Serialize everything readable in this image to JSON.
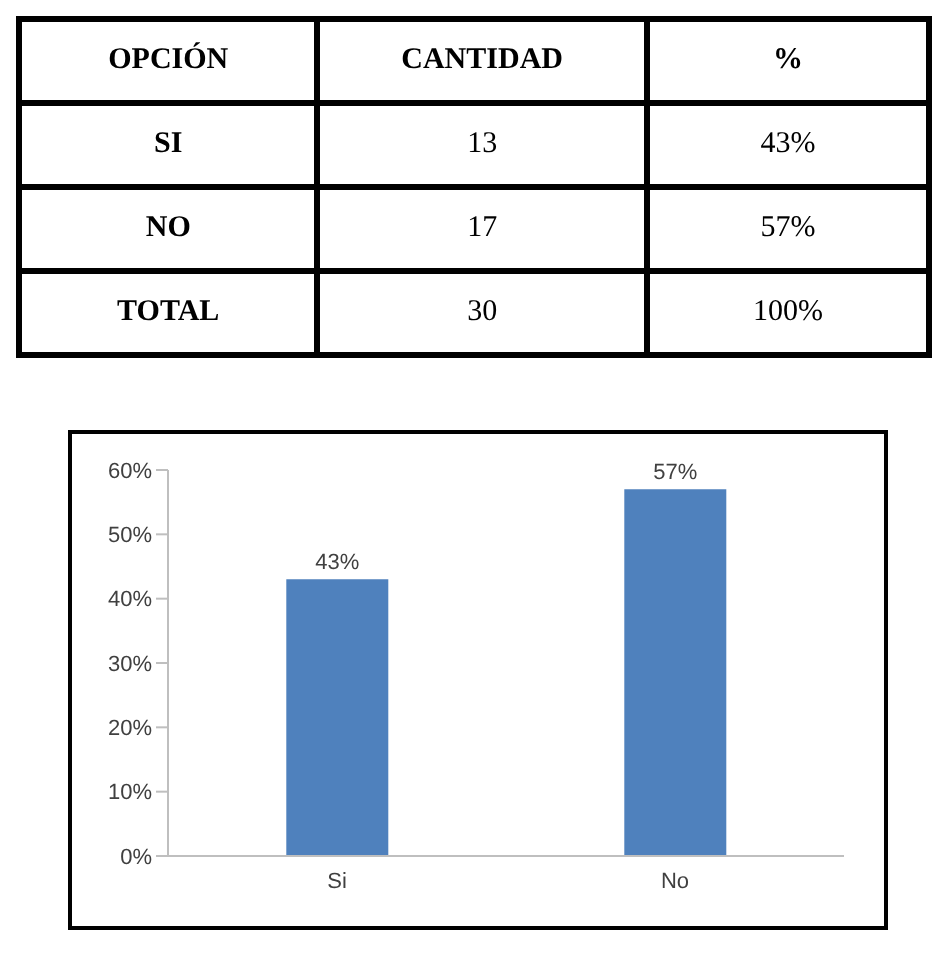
{
  "chart_data": {
    "type": "bar",
    "categories": [
      "Si",
      "No"
    ],
    "values": [
      43,
      57
    ],
    "color": "#4f81bd",
    "value_labels": [
      "43%",
      "57%"
    ],
    "ylim": [
      0,
      60
    ],
    "yticks": [
      {
        "value": 0,
        "label": "0%"
      },
      {
        "value": 10,
        "label": "10%"
      },
      {
        "value": 20,
        "label": "20%"
      },
      {
        "value": 30,
        "label": "30%"
      },
      {
        "value": 40,
        "label": "40%"
      },
      {
        "value": 50,
        "label": "50%"
      },
      {
        "value": 60,
        "label": "60%"
      }
    ],
    "annotations": [
      "OPCIÓN",
      "CANTIDAD",
      "%",
      "SI",
      "13",
      "43%",
      "NO",
      "17",
      "57%",
      "TOTAL",
      "30",
      "100%"
    ]
  }
}
